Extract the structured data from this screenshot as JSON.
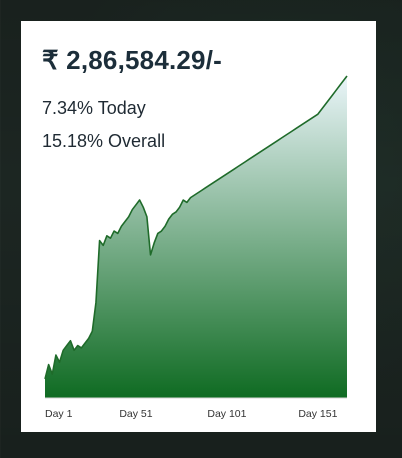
{
  "card": {
    "balance": "₹ 2,86,584.29/-",
    "today": "7.34% Today",
    "overall": "15.18% Overall"
  },
  "colors": {
    "line": "#1f6b2a",
    "fill_top": "#eaf5f9",
    "fill_bottom": "#0f6b22",
    "text": "#1c2e3a"
  },
  "chart_data": {
    "type": "area",
    "x_ticks": [
      "Day 1",
      "Day 51",
      "Day 101",
      "Day 151"
    ],
    "x": [
      1,
      3,
      5,
      7,
      9,
      11,
      13,
      15,
      17,
      19,
      21,
      23,
      25,
      27,
      29,
      31,
      33,
      35,
      37,
      39,
      41,
      43,
      45,
      47,
      49,
      51,
      53,
      55,
      57,
      59,
      61,
      63,
      65,
      67,
      69,
      71,
      73,
      75,
      77,
      79,
      81,
      83,
      85,
      87,
      89,
      91,
      93,
      95,
      97,
      99,
      101,
      103,
      105,
      107,
      109,
      111,
      113,
      115,
      117,
      119,
      121,
      123,
      125,
      127,
      129,
      131,
      133,
      135,
      137,
      139,
      141,
      143,
      145,
      147,
      149,
      151,
      153,
      155,
      157,
      159,
      161,
      163,
      165,
      167
    ],
    "values": [
      8,
      14,
      10,
      18,
      15,
      20,
      22,
      24,
      20,
      22,
      21,
      23,
      25,
      28,
      40,
      66,
      64,
      68,
      67,
      70,
      69,
      72,
      74,
      76,
      79,
      81,
      83,
      80,
      76,
      60,
      65,
      69,
      70,
      72,
      75,
      77,
      78,
      80,
      83,
      82,
      84,
      85,
      86,
      87,
      88,
      89,
      90,
      91,
      92,
      93,
      94,
      95,
      96,
      97,
      98,
      99,
      100,
      101,
      102,
      103,
      104,
      105,
      106,
      107,
      108,
      109,
      110,
      111,
      112,
      113,
      114,
      115,
      116,
      117,
      118,
      119,
      121,
      123,
      125,
      127,
      129,
      131,
      133,
      135
    ]
  }
}
